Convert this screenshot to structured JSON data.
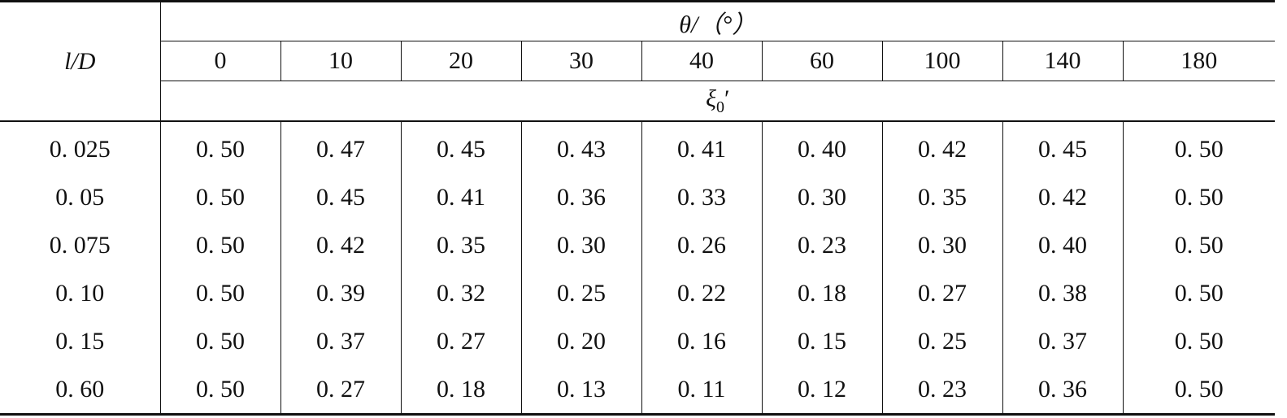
{
  "table": {
    "row_header_label": "l/D",
    "theta_header": "θ/（°）",
    "xi_symbol": "ξ",
    "xi_subscript": "0",
    "xi_prime": "′",
    "columns": [
      "0",
      "10",
      "20",
      "30",
      "40",
      "60",
      "100",
      "140",
      "180"
    ],
    "rows": [
      {
        "ld": "0. 025",
        "values": [
          "0. 50",
          "0. 47",
          "0. 45",
          "0. 43",
          "0. 41",
          "0. 40",
          "0. 42",
          "0. 45",
          "0. 50"
        ]
      },
      {
        "ld": "0. 05",
        "values": [
          "0. 50",
          "0. 45",
          "0. 41",
          "0. 36",
          "0. 33",
          "0. 30",
          "0. 35",
          "0. 42",
          "0. 50"
        ]
      },
      {
        "ld": "0. 075",
        "values": [
          "0. 50",
          "0. 42",
          "0. 35",
          "0. 30",
          "0. 26",
          "0. 23",
          "0. 30",
          "0. 40",
          "0. 50"
        ]
      },
      {
        "ld": "0. 10",
        "values": [
          "0. 50",
          "0. 39",
          "0. 32",
          "0. 25",
          "0. 22",
          "0. 18",
          "0. 27",
          "0. 38",
          "0. 50"
        ]
      },
      {
        "ld": "0. 15",
        "values": [
          "0. 50",
          "0. 37",
          "0. 27",
          "0. 20",
          "0. 16",
          "0. 15",
          "0. 25",
          "0. 37",
          "0. 50"
        ]
      },
      {
        "ld": "0. 60",
        "values": [
          "0. 50",
          "0. 27",
          "0. 18",
          "0. 13",
          "0. 11",
          "0. 12",
          "0. 23",
          "0. 36",
          "0. 50"
        ]
      }
    ]
  }
}
